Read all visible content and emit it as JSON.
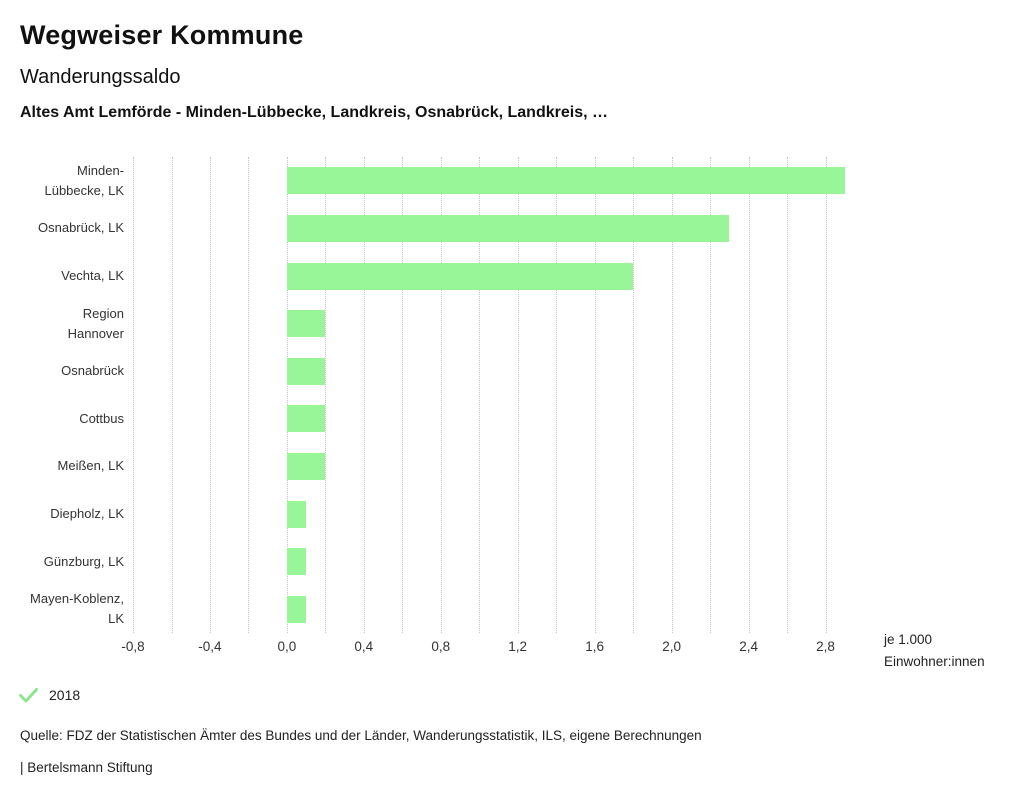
{
  "header": {
    "title": "Wegweiser Kommune",
    "subtitle": "Wanderungssaldo",
    "selection": "Altes Amt Lemförde - Minden-Lübbecke, Landkreis, Osnabrück, Landkreis, …"
  },
  "chart_data": {
    "type": "bar",
    "orientation": "horizontal",
    "title": "Wanderungssaldo",
    "categories": [
      "Minden-Lübbecke, LK",
      "Osnabrück, LK",
      "Vechta, LK",
      "Region Hannover",
      "Osnabrück",
      "Cottbus",
      "Meißen, LK",
      "Diepholz, LK",
      "Günzburg, LK",
      "Mayen-Koblenz, LK"
    ],
    "label_lines": [
      [
        "Minden-",
        "Lübbecke, LK"
      ],
      [
        "Osnabrück, LK"
      ],
      [
        "Vechta, LK"
      ],
      [
        "Region",
        "Hannover"
      ],
      [
        "Osnabrück"
      ],
      [
        "Cottbus"
      ],
      [
        "Meißen, LK"
      ],
      [
        "Diepholz, LK"
      ],
      [
        "Günzburg, LK"
      ],
      [
        "Mayen-Koblenz,",
        "LK"
      ]
    ],
    "series": [
      {
        "name": "2018",
        "values": [
          2.9,
          2.3,
          1.8,
          0.2,
          0.2,
          0.2,
          0.2,
          0.1,
          0.1,
          0.1
        ]
      }
    ],
    "xlabel_unit_lines": [
      "je 1.000",
      "Einwohner:innen"
    ],
    "xlim": [
      -0.8,
      3.0
    ],
    "grid": true,
    "grid_step": 0.2,
    "grid_min": -0.8,
    "grid_max": 2.8,
    "ticks": [
      -0.8,
      -0.4,
      0.0,
      0.4,
      0.8,
      1.2,
      1.6,
      2.0,
      2.4,
      2.8
    ],
    "tick_labels": [
      "-0,8",
      "-0,4",
      "0,0",
      "0,4",
      "0,8",
      "1,2",
      "1,6",
      "2,0",
      "2,4",
      "2,8"
    ],
    "legend_position": "bottom-left",
    "legend": [
      {
        "label": "2018",
        "checked": true
      }
    ]
  },
  "colors": {
    "bar_green": "#98f598",
    "check_green": "#8de58d",
    "grid": "#c4c4c4",
    "text": "#1a1a1a"
  },
  "footer": {
    "source": "Quelle: FDZ der Statistischen Ämter des Bundes und der Länder, Wanderungsstatistik, ILS, eigene Berechnungen",
    "attribution": "| Bertelsmann Stiftung"
  }
}
